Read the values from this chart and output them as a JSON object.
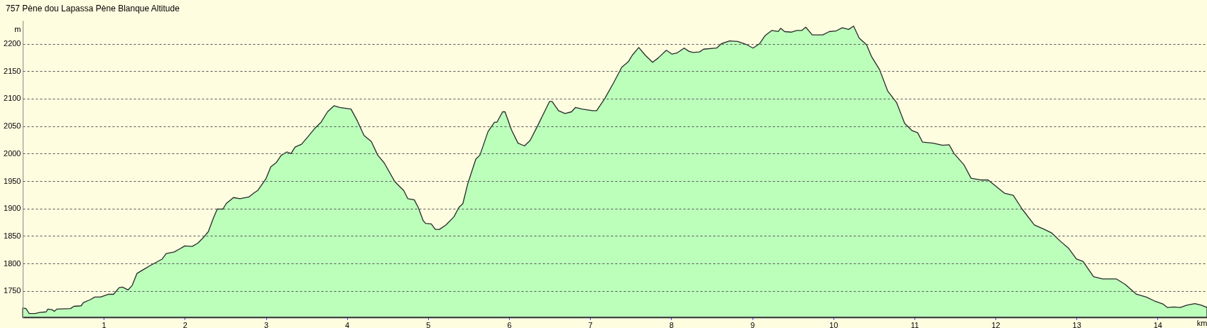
{
  "chart_data": {
    "type": "area",
    "title": "757 Pène dou Lapassa Pène Blanque Altitude",
    "xlabel": "km",
    "ylabel": "m",
    "x": [
      0.0,
      0.04,
      0.08,
      0.15,
      0.21,
      0.29,
      0.31,
      0.36,
      0.39,
      0.42,
      0.59,
      0.63,
      0.72,
      0.75,
      0.83,
      0.89,
      0.96,
      1.06,
      1.12,
      1.19,
      1.23,
      1.3,
      1.35,
      1.41,
      1.49,
      1.57,
      1.67,
      1.72,
      1.77,
      1.87,
      1.93,
      2.0,
      2.09,
      2.16,
      2.24,
      2.29,
      2.35,
      2.4,
      2.47,
      2.51,
      2.6,
      2.68,
      2.79,
      2.85,
      2.9,
      3.0,
      3.06,
      3.13,
      3.19,
      3.26,
      3.31,
      3.36,
      3.44,
      3.52,
      3.61,
      3.68,
      3.76,
      3.84,
      3.91,
      4.05,
      4.13,
      4.21,
      4.3,
      4.38,
      4.46,
      4.59,
      4.65,
      4.7,
      4.75,
      4.83,
      4.88,
      4.94,
      4.97,
      5.04,
      5.09,
      5.14,
      5.22,
      5.32,
      5.38,
      5.43,
      5.49,
      5.59,
      5.64,
      5.74,
      5.82,
      5.85,
      5.92,
      5.95,
      6.03,
      6.11,
      6.19,
      6.26,
      6.35,
      6.43,
      6.5,
      6.53,
      6.61,
      6.69,
      6.77,
      6.82,
      6.9,
      7.03,
      7.08,
      7.18,
      7.29,
      7.39,
      7.47,
      7.52,
      7.6,
      7.68,
      7.77,
      7.84,
      7.94,
      8.01,
      8.07,
      8.16,
      8.22,
      8.27,
      8.35,
      8.4,
      8.56,
      8.62,
      8.72,
      8.82,
      8.92,
      9.01,
      9.09,
      9.16,
      9.24,
      9.32,
      9.35,
      9.4,
      9.48,
      9.55,
      9.61,
      9.66,
      9.74,
      9.87,
      9.95,
      10.03,
      10.11,
      10.19,
      10.25,
      10.32,
      10.41,
      10.47,
      10.57,
      10.67,
      10.78,
      10.88,
      10.97,
      11.04,
      11.1,
      11.23,
      11.35,
      11.43,
      11.49,
      11.61,
      11.7,
      11.82,
      11.91,
      12.01,
      12.11,
      12.22,
      12.33,
      12.48,
      12.59,
      12.69,
      12.79,
      12.9,
      13.0,
      13.08,
      13.21,
      13.32,
      13.49,
      13.6,
      13.74,
      13.86,
      13.96,
      14.07,
      14.12,
      14.2,
      14.28,
      14.36,
      14.46,
      14.54,
      14.61
    ],
    "series": [
      {
        "color": "#bbffbb",
        "values": [
          1719,
          1718,
          1709,
          1709,
          1711,
          1712,
          1717,
          1716,
          1713,
          1717,
          1718,
          1722,
          1723,
          1729,
          1734,
          1739,
          1739,
          1744,
          1744,
          1756,
          1757,
          1752,
          1760,
          1782,
          1789,
          1796,
          1804,
          1808,
          1818,
          1821,
          1826,
          1832,
          1831,
          1837,
          1849,
          1858,
          1882,
          1899,
          1899,
          1909,
          1920,
          1918,
          1921,
          1928,
          1933,
          1954,
          1976,
          1984,
          1997,
          2003,
          2000,
          2012,
          2017,
          2031,
          2047,
          2057,
          2076,
          2087,
          2084,
          2081,
          2059,
          2033,
          2022,
          1997,
          1983,
          1949,
          1940,
          1933,
          1918,
          1916,
          1902,
          1878,
          1873,
          1872,
          1862,
          1862,
          1870,
          1885,
          1902,
          1909,
          1945,
          1990,
          1997,
          2040,
          2057,
          2057,
          2076,
          2076,
          2043,
          2019,
          2014,
          2024,
          2050,
          2074,
          2095,
          2095,
          2078,
          2073,
          2076,
          2084,
          2081,
          2078,
          2078,
          2100,
          2129,
          2157,
          2167,
          2179,
          2193,
          2179,
          2166,
          2174,
          2188,
          2181,
          2183,
          2192,
          2186,
          2184,
          2185,
          2190,
          2192,
          2200,
          2205,
          2204,
          2199,
          2192,
          2200,
          2215,
          2224,
          2222,
          2228,
          2222,
          2221,
          2224,
          2224,
          2230,
          2216,
          2216,
          2222,
          2223,
          2229,
          2226,
          2232,
          2210,
          2198,
          2177,
          2153,
          2114,
          2093,
          2055,
          2042,
          2038,
          2021,
          2019,
          2015,
          2016,
          2000,
          1980,
          1955,
          1952,
          1952,
          1940,
          1928,
          1924,
          1899,
          1870,
          1863,
          1856,
          1842,
          1828,
          1808,
          1804,
          1776,
          1772,
          1772,
          1762,
          1744,
          1739,
          1732,
          1726,
          1720,
          1721,
          1720,
          1724,
          1727,
          1724,
          1720
        ]
      }
    ],
    "xlim": [
      0,
      14.61
    ],
    "ylim": [
      1702,
      2242
    ],
    "xticks": [
      1,
      2,
      3,
      4,
      5,
      6,
      7,
      8,
      9,
      10,
      11,
      12,
      13,
      14
    ],
    "yticks": [
      1750,
      1800,
      1850,
      1900,
      1950,
      2000,
      2050,
      2100,
      2150,
      2200
    ],
    "grid": "y"
  }
}
